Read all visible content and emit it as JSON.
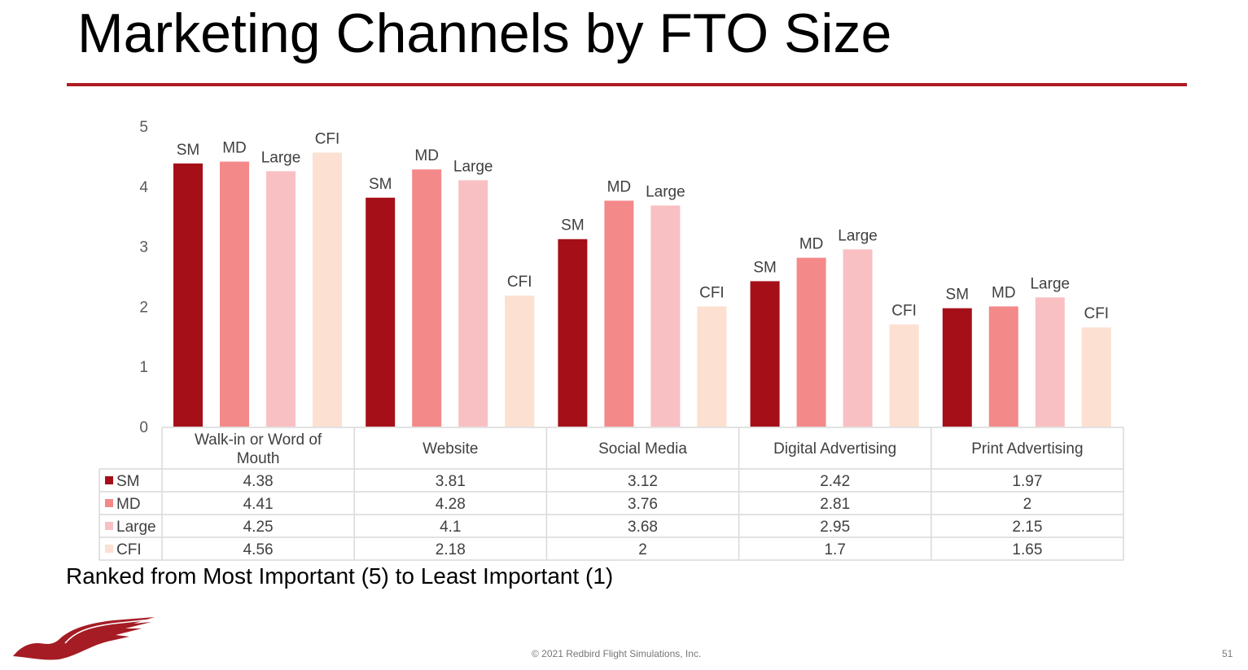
{
  "title": "Marketing Channels by FTO Size",
  "subtitle": "Ranked from Most Important (5) to Least Important (1)",
  "footer": {
    "copyright": "© 2021 Redbird Flight Simulations, Inc.",
    "page_number": "51"
  },
  "logo": {
    "name": "redbird-logo",
    "color": "#a51c24"
  },
  "chart_data": {
    "type": "bar",
    "title": "",
    "xlabel": "",
    "ylabel": "",
    "ylim": [
      0,
      5
    ],
    "yticks": [
      "0",
      "1",
      "2",
      "3",
      "4",
      "5"
    ],
    "grid": false,
    "legend": "data-table",
    "categories": [
      "Walk-in or Word of Mouth",
      "Website",
      "Social Media",
      "Digital Advertising",
      "Print Advertising"
    ],
    "series": [
      {
        "name": "SM",
        "color": "#a50f18",
        "values": [
          4.38,
          3.81,
          3.12,
          2.42,
          1.97
        ]
      },
      {
        "name": "MD",
        "color": "#f4898a",
        "values": [
          4.41,
          4.28,
          3.76,
          2.81,
          2
        ]
      },
      {
        "name": "Large",
        "color": "#f9c0c3",
        "values": [
          4.25,
          4.1,
          3.68,
          2.95,
          2.15
        ]
      },
      {
        "name": "CFI",
        "color": "#fce0d1",
        "values": [
          4.56,
          2.18,
          2,
          1.7,
          1.65
        ]
      }
    ]
  }
}
